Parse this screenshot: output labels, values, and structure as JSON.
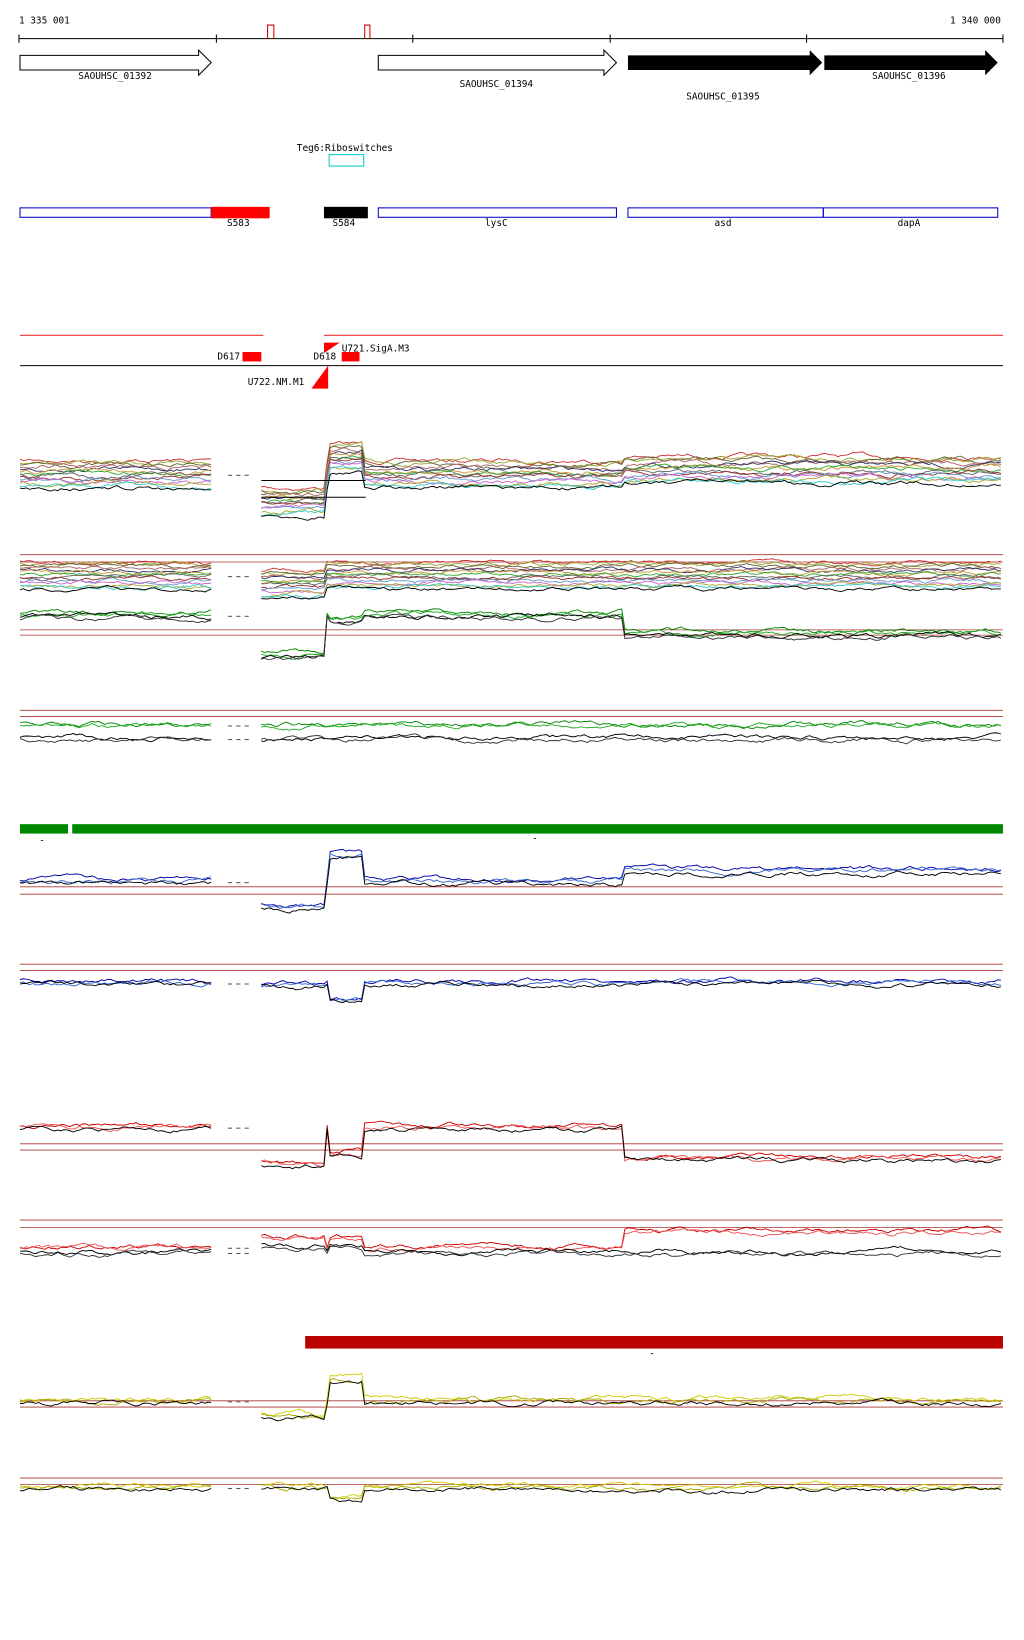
{
  "ruler": {
    "start": "1 335 001",
    "end": "1 340 000"
  },
  "genes": [
    {
      "label": "SAOUHSC_01392"
    },
    {
      "label": "SAOUHSC_01394"
    },
    {
      "label": "SAOUHSC_01395"
    },
    {
      "label": "SAOUHSC_01396"
    }
  ],
  "feature": {
    "label": "Teg6:Riboswitches"
  },
  "annotations": [
    {
      "label": "S583"
    },
    {
      "label": "S584"
    },
    {
      "label": "lysC"
    },
    {
      "label": "asd"
    },
    {
      "label": "dapA"
    }
  ],
  "regions": [
    {
      "label": "D617"
    },
    {
      "label": "D618"
    },
    {
      "label": "U721.SigA.M3"
    },
    {
      "label": "U722.NM.M1"
    }
  ],
  "markers": [
    "-",
    "-",
    "-"
  ]
}
